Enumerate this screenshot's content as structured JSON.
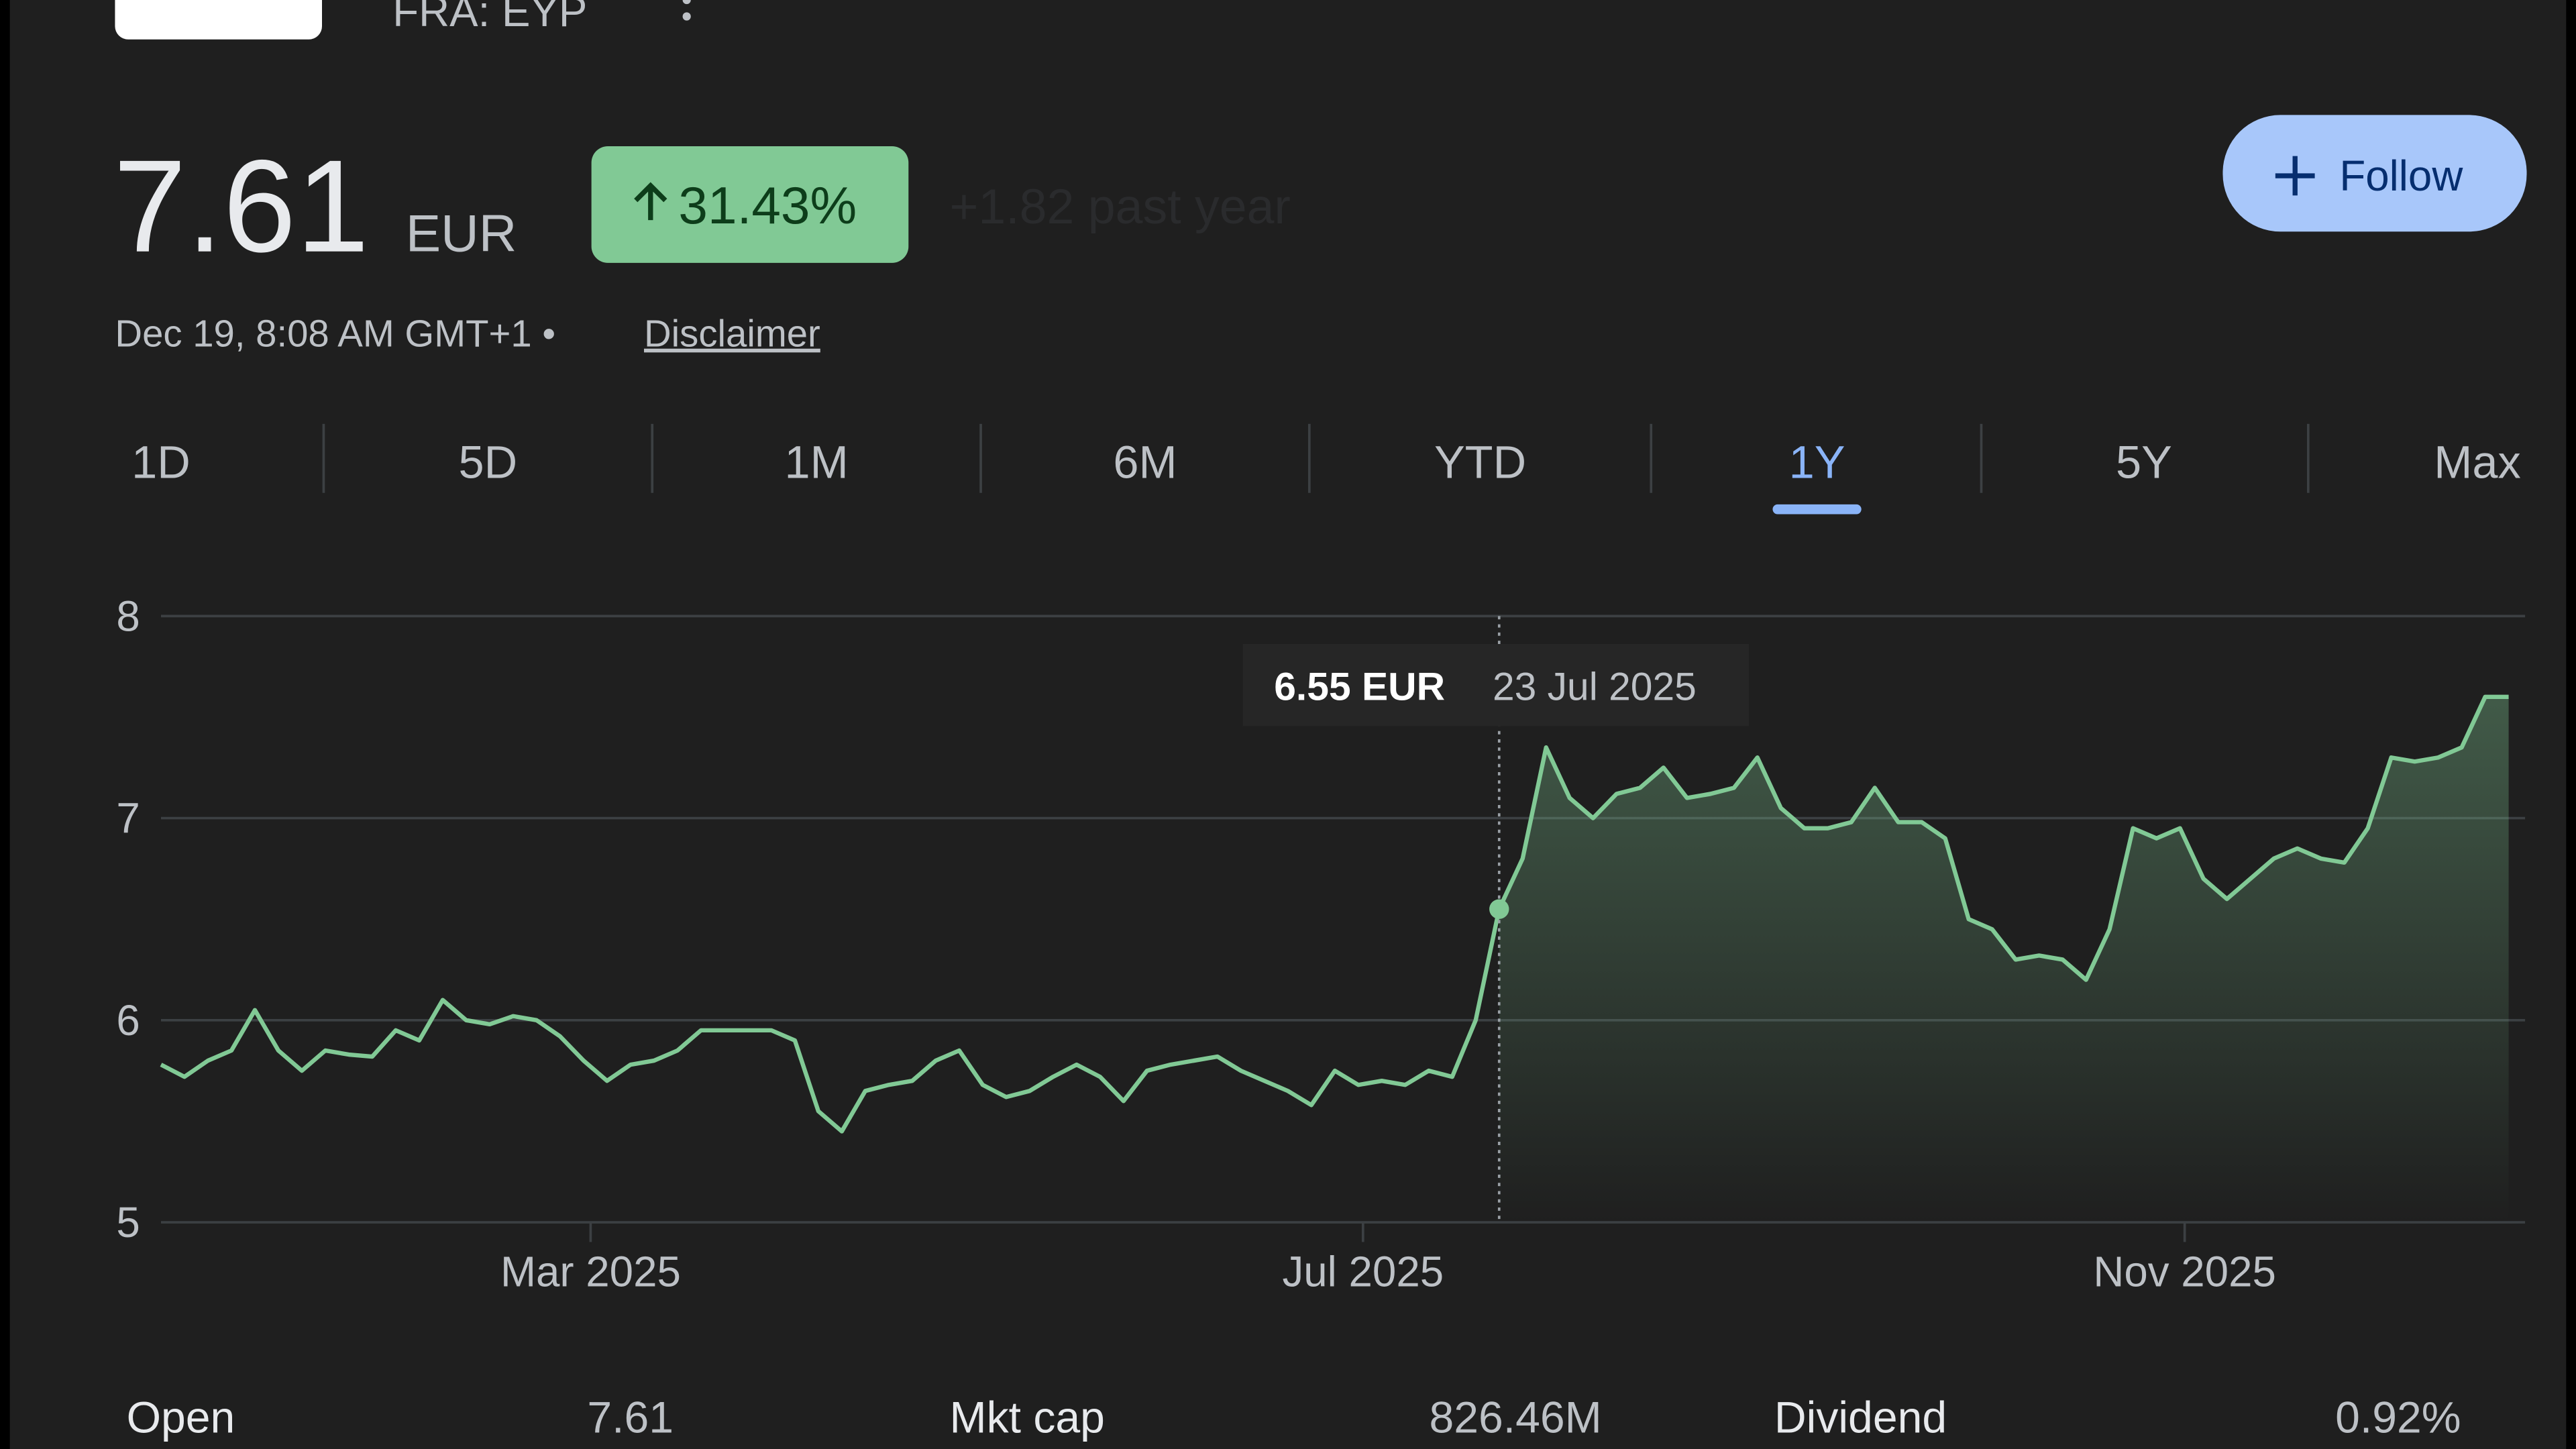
{
  "header": {
    "ticker": "FRA: EYP",
    "price": "7.61",
    "currency": "EUR",
    "change": "31.43%",
    "change_note": "+1.82 past year",
    "timestamp": "Dec 19, 8:08 AM GMT+1 •",
    "disclaimer": "Disclaimer",
    "follow": "Follow"
  },
  "tabs": {
    "items": [
      "1D",
      "5D",
      "1M",
      "6M",
      "YTD",
      "1Y",
      "5Y",
      "Max"
    ],
    "active_index": 5
  },
  "chart_data": {
    "type": "line",
    "color": "#81c995",
    "grid": true,
    "values": [
      5.78,
      5.72,
      5.8,
      5.85,
      6.05,
      5.85,
      5.75,
      5.85,
      5.83,
      5.82,
      5.95,
      5.9,
      6.1,
      6.0,
      5.98,
      6.02,
      6.0,
      5.92,
      5.8,
      5.7,
      5.78,
      5.8,
      5.85,
      5.95,
      5.95,
      5.95,
      5.95,
      5.9,
      5.55,
      5.45,
      5.65,
      5.68,
      5.7,
      5.8,
      5.85,
      5.68,
      5.62,
      5.65,
      5.72,
      5.78,
      5.72,
      5.6,
      5.75,
      5.78,
      5.8,
      5.82,
      5.75,
      5.7,
      5.65,
      5.58,
      5.75,
      5.68,
      5.7,
      5.68,
      5.75,
      5.72,
      6.0,
      6.55,
      6.8,
      7.35,
      7.1,
      7.0,
      7.12,
      7.15,
      7.25,
      7.1,
      7.12,
      7.15,
      7.3,
      7.05,
      6.95,
      6.95,
      6.98,
      7.15,
      6.98,
      6.98,
      6.9,
      6.5,
      6.45,
      6.3,
      6.32,
      6.3,
      6.2,
      6.45,
      6.95,
      6.9,
      6.95,
      6.7,
      6.6,
      6.7,
      6.8,
      6.85,
      6.8,
      6.78,
      6.95,
      7.3,
      7.28,
      7.3,
      7.35,
      7.6,
      7.6
    ],
    "xlim": [
      0,
      100
    ],
    "xticks": [
      {
        "value": 18.3,
        "label": "Mar 2025"
      },
      {
        "value": 51.2,
        "label": "Jul 2025"
      },
      {
        "value": 86.2,
        "label": "Nov 2025"
      }
    ],
    "ylim": [
      5,
      8
    ],
    "yticks": [
      5,
      6,
      7,
      8
    ],
    "hover": {
      "value": 6.55,
      "label": "6.55 EUR",
      "date": "23 Jul 2025"
    }
  },
  "stats": [
    {
      "label": "Open",
      "value": "7.61"
    },
    {
      "label": "Mkt cap",
      "value": "826.46M"
    },
    {
      "label": "Dividend",
      "value": "0.92%"
    }
  ]
}
